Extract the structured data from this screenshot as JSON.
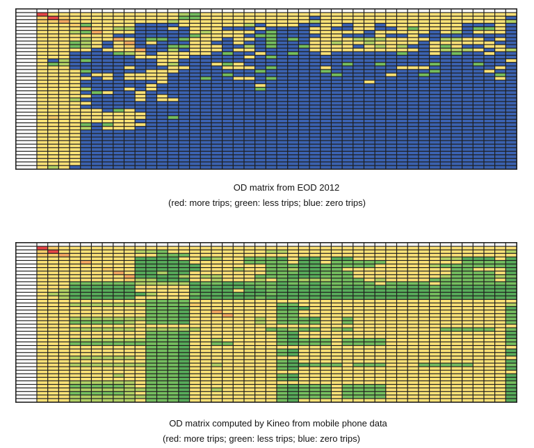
{
  "legend_colors": {
    "r": "#E64646",
    "o": "#F4A861",
    "p": "#F8CD6A",
    "y": "#FCE277",
    "l": "#B2D165",
    "g": "#75BE5F",
    "d": "#58AC5B",
    "b": "#3B62B0"
  },
  "chart_data": [
    {
      "type": "heatmap",
      "title": "OD matrix from EOD 2012",
      "subtitle": "(red: more trips; green: less trips; blue: zero trips)",
      "color_scale": {
        "r": "more trips",
        "o": "more trips",
        "p": "average",
        "y": "average",
        "l": "less trips",
        "g": "less trips",
        "d": "less trips",
        "b": "zero trips"
      },
      "rows": 44,
      "cols": 44,
      "grid": [
        "ryyyyyyyyyyyylgyyyyyyyyyyyyyyyyyyyyyyyyyyyyy",
        "prpyyyyyyyyyyggyyyyyyyyyybyyyyyyyyyyyyyyyyyb",
        "ppoyyyyyyyyylyyyyyyyyyyyylyyyyyyyyyyyyyyyyyl",
        "yyypgyyyybbbbyyyyyylbyyybbyybyybyyyyyyybbbyb",
        "yyyyoyyllbbbybyyybbbybbbbyybbyybbygyyyybggyb",
        "yyylgoyyybbbbbylyyyybgbbbyyyyybyyyyybylbyyyb",
        "yyyyyyybbbbbbbgyyyybggbbbbyybbbybbybbbbbbbbb",
        "yyyylyyoybggbgyyybyybgbgbyyyylllyyyybllyybyb",
        "yyyglybyobybbbyybbybbgbbbyylyylyyyybyyyyyybb",
        "yyyglybypbbbggyyybblbgbbgyyyybylylbbygybbyyb",
        "yyyyybyyyobblbyyybyybbbbbyyyyyyyyyybylllybyl",
        "yyybbbbglybyyyyybgbbybbgbbybbbbbbgbbybgbbybb",
        "yyybbbbbbyyyyybbbbbybgbbbbbbbbbbbbbbbbbbbbbb",
        "yblbgbbbbbbyybbbbbbbbbbbbbbbbbbbbbbbbbbbbbby",
        "yglbbbbbbbbylbbbygybbbbbbbbbgbbgbbbbgbbbgbbb",
        "yyybbbbbybbbyybbbyyybgbbbbybbbbbbyyybbbbbbyb",
        "yyyygbbbbbyyybbbbbbbgbbbbbgbbbbbbbbbgbbbbybb",
        "yyyybyybyyyybbbbbgbbbbbbbbbgbbbbybbgbbbbbbgb",
        "yyyyybybyyyybbbgbbyybgbbbbbbbbbbbbbbbbbbbbyb",
        "yyyybbbbbbbybbbbbbbbbbbbbbbbbbybbbbbbbbbbbbb",
        "yyyybbbbbbybbbbbbbbbybbbbbbbbbbbbbbbbbbbbbbb",
        "yyyylbbbybybbbbbbbbbgbbbbbbbbbbbbbbbbbbbbbbb",
        "yyyybgybbybbbbbbbbbbbbbbbbbbbbbbbbbbbbbbbbbb",
        "yyyyybbbbybybbbbbbbbbbbbbbbbbbbbbbbbbbbbbbbb",
        "yyylbbbbbybyybbbbbbbbbbbbbbbbbbbbbbbbbbbbbbb",
        "yyyyybbbbbbbbbbbbbbbbbbbbbbbbbbbbbbbbbbbbbbb",
        "yyyybbbbbbbbbbbbbbbbbbbbbbbbbbbbbbbbbbbbbbbb",
        "yyyyyybgybbbbbbbbbbbbbbbbbbbbbbbbbbbbbbbbbbb",
        "yyyyyyyyyybbbbbbbbbbbbbbbbbbbbbbbbbbbbbbbbbb",
        "ypyyyyyyyybbgbbbbbbbbbbbbbbbbbbbbbbbbbbbbbbb",
        "yyyyyyyyybbbbbbbbbbbbbbbbbbbbbbbbbbbbbbbbbbb",
        "yyyygbgyyybbbbbbbbbbbbbbbbbbbbbbbbbbbbbbbbbb",
        "yyyylbyyybbbbbbbbbbbbbbbbbbbbbbbbbbbbbbbbbbb",
        "yyyybbbbbbbbbbbbbbbbbbbbbbbbbbbbbbbbbbbbbbbb",
        "yyyybbbbbbbbbbbbbbbbbbbbbbbbbbbbbbbbbbbbbbbb",
        "yyyybbbbbbbbbbbbbbbbbbbbbbbbbbbbbbbbbbbbbbbb",
        "yyyybbbbbbbbbbbbbbbbbbbbbbbbbbbbbbbbbbbbbbbb",
        "yyyybbbbbbbbbbbbbbbbbbbbbbbbbbbbbbbbbbbbbbbb",
        "yyyybbbbbbbbbbbbbbbbbbbbbbbbbbbbbbbbbbbbbbbb",
        "yyyybbbbbbbbbbbbbbbbbbbbbbbbbbbbbbbbbbbbbbbb",
        "yyyybbbbbbbbbbbbbbbbbbbbbbbbbbbbbbbbbbbbbbbb",
        "yyyybbbbbbbbbbbbbbbbbbbbbbbbbbbbbbbbbbbbbbbb",
        "yyyybbbbbbbbbbbbbbbbbbbbbbbbbbbbbbbbbbbbbbbb",
        "ylybbbbbbbbbbbbbbbbbbbbbbbbbbbbbbbbbbbbbbbbb"
      ]
    },
    {
      "type": "heatmap",
      "title": "OD matrix computed by Kineo from mobile phone data",
      "subtitle": "(red: more trips; green: less trips; blue: zero trips)",
      "color_scale": {
        "r": "more trips",
        "o": "more trips",
        "p": "average",
        "y": "average",
        "l": "less trips",
        "g": "less trips",
        "d": "less trips",
        "b": "zero trips"
      },
      "rows": 44,
      "cols": 44,
      "grid": [
        "rpyyyyyyyyyyyyyyyyyyyyyyyyyyyyyyyyyyyyyyyyyy",
        "pryyyyyyyllgyyyyyyyyyllyyyyyyyyyyyyyyyyyyyyl",
        "ppoyyyyyyyygggyyyyyyyyyyyyyyyyyyyyyyyyyyyyyy",
        "yyyyyyyyyddddyyglyygggdyddyddyyyyyyyylldddyd",
        "yyyyoyyyydddddyyyyyggggyddygggggyyyyyyyggggd",
        "yyyyyyyyyddddddyyyyyygggddgggggyyyyylggggggd",
        "yyyyyypyyddddddyyylyygglddggyyyyyyyyyyggyyyd",
        "yyyyyyyoyddlddyyyyyyygggddgggyyyyyyyyyggggyd",
        "yyyyyyyyoddddlyllyyygggdddgggyyyyyyyylgggglg",
        "yyyyyyyyplldddyylyyylygglllgggylyyyyggggggyd",
        "yyyggggggllllldggddgggdggdgggggyggggyggggggg",
        "yyyddddddyyyyyddddddggdddddgddgdgdddgddddddd",
        "yylddddddyyyyyddddyddgddddddddddddddgddddddd",
        "ylldddddddlyyygddddddgddddddddddddddgddddddd",
        "yylddddddyyyyyddddddgdddddddddddddddgddddddd",
        "yyyyyyyyyyggggyyyyyyyyyyyyyyyyyyyyyyyyyyyyyy",
        "yyylllllllggggpyyyyyyyggyyyyyyyyyyyyyyyyyyyl",
        "yyyyyyyyyygggdyyyyyyyydddyyyyyyyyyyyyyyyyyyd",
        "yyyyyyyyyygggdyyoyyyyyggyyyyyyyyyyyyyyyyyyyg",
        "yyyyyyyyyygggdyyyoyyyyggyyyyyyyyyyyyyyyyyyyg",
        "yyylllllllgggdyyyyyylygggdyygyyyyyyyyyyyyyyg",
        "yyyggggglygggdyyyyyylyggggyygyyyyyyyyyyyyyyg",
        "yyyyyyyyyyyyyyyyyyyyyyyyyyyyyyyyyyyyyyyyyyyy",
        "yyyllllllylllllyyyyyygglggylgyyyyyyyygggggyg",
        "yyyyyyyyyygggdyyyyyyyygdyyyyyyyyyyyyyyyyyyyd",
        "yyyyyyyyyygggdyyyyyyyygdyyyyyyyyyyyyyyyyyyyd",
        "yyylllllllgggdyylyyyyygdgggyggggyyyyyyyyyyyg",
        "yyyggggggggggdyyggyyyygdgggyggggyyyyyyyyyyyg",
        "yyyyyyyyyygggdyyyyyyyyyyyyyyyyyyyyyyyyyyyyyy",
        "yyyyyyyyyygggdyyyyyyyygdyyyyyyyyyyyyyyyyyyyd",
        "yyyyyyyyyygggdyyyyyyyygdyyyyyyyyyyyyyyyyyyyd",
        "yyyllllllygggdyyyyyyyyyyyyyyyyyyyyyyyyyyyyyy",
        "yyyyyyyyyygggdyyyyyyyygdyyyyyyyyyyyyyyyyyyyd",
        "yyylllllllgggdyylyyyyygddgggygggyyygggggyyyg",
        "yyyyyyyyyygggdyyyyyyyygdyyyyyyyyyyyyyyyyyyyd",
        "yyyyyyyyyygggdyyyyyyyyyyyyyyyyyyyyyyyyyyyyyy",
        "yyyyyyylyygggdyyyyyyyygdyyyyyyyyyyyyyyyyyyyd",
        "yyyyyyyyyygggdyyyyyyyygdyyyyyyyyyyyyyyyyyyyd",
        "yyyllllllygggdyyyyyyyyyyyyyyyyyyyyyyyyyyyyyg",
        "yyyggggglygggdyyyyyyyygdgggyggggyyyyyyyyyyyd",
        "yyylllllllgggdyylyyyyygdgggyggggyyyyyyyyyyyd",
        "yyyggggglygggdyyyyyyyygdgggyggggyyyyyyyyyyyd",
        "yyylllllllgggdyyyyyyyygdgggyggggyyyyyyyyyyyd",
        "yyyllllllygggdyyyyyyyygdyyyyyyyyyyyyyyyyyyyd"
      ]
    }
  ],
  "captions": {
    "top_title": "OD matrix from EOD 2012",
    "top_subtitle": "(red: more trips; green: less trips; blue: zero trips)",
    "bottom_title": "OD matrix computed by Kineo from mobile phone data",
    "bottom_subtitle": "(red: more trips; green: less trips; blue: zero trips)"
  }
}
